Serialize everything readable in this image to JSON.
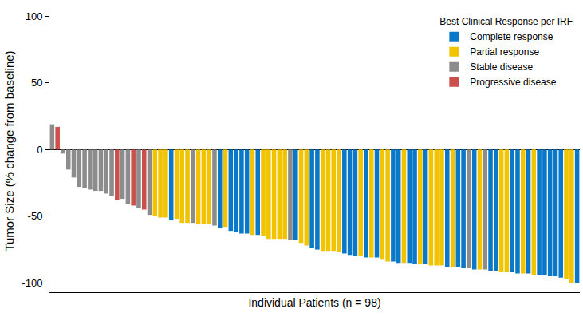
{
  "chart_data": {
    "type": "bar",
    "x_label": "Individual Patients (n = 98)",
    "y_label": "Tumor Size (% change from baseline)",
    "legend_title": "Best Clinical Response per IRF",
    "legend": "top right",
    "grid": false,
    "tick_labels": "y",
    "ylim": [
      -107,
      105
    ],
    "yticks": [
      -100,
      -50,
      0,
      50,
      100
    ],
    "categories": [
      null,
      null,
      null,
      null,
      null,
      null,
      null,
      null,
      null,
      null,
      null,
      null,
      null,
      null,
      null,
      null,
      null,
      null,
      null,
      null,
      null,
      null,
      null,
      null,
      null,
      null,
      null,
      null,
      null,
      null,
      null,
      null,
      null,
      null,
      null,
      null,
      null,
      null,
      null,
      null,
      null,
      null,
      null,
      null,
      null,
      null,
      null,
      null,
      null,
      null,
      null,
      null,
      null,
      null,
      null,
      null,
      null,
      null,
      null,
      null,
      null,
      null,
      null,
      null,
      null,
      null,
      null,
      null,
      null,
      null,
      null,
      null,
      null,
      null,
      null,
      null,
      null,
      null,
      null,
      null,
      null,
      null,
      null,
      null,
      null,
      null,
      null,
      null,
      null,
      null,
      null,
      null,
      null,
      null,
      null,
      null,
      null,
      null
    ],
    "series": [
      {
        "name": "Complete response",
        "color": "#0a78c8",
        "values": [
          null,
          null,
          null,
          null,
          null,
          null,
          null,
          null,
          null,
          null,
          null,
          null,
          null,
          null,
          null,
          null,
          null,
          null,
          null,
          null,
          null,
          null,
          -53,
          null,
          null,
          null,
          null,
          null,
          null,
          null,
          null,
          -59,
          null,
          -61,
          -62,
          -63,
          -63,
          null,
          -64,
          null,
          null,
          null,
          null,
          null,
          null,
          -68,
          null,
          null,
          -74,
          -75,
          null,
          null,
          null,
          null,
          -78,
          -79,
          -80,
          null,
          -81,
          null,
          -81,
          null,
          null,
          -84,
          -85,
          null,
          -85,
          -86,
          null,
          -86,
          null,
          null,
          null,
          -88,
          null,
          -88,
          -89,
          null,
          -90,
          null,
          null,
          -91,
          -91,
          null,
          null,
          -92,
          -93,
          null,
          -93,
          null,
          -94,
          -94,
          -95,
          -95,
          -96,
          null,
          null,
          -100
        ]
      },
      {
        "name": "Partial response",
        "color": "#f2c300",
        "values": [
          null,
          null,
          null,
          null,
          null,
          null,
          null,
          null,
          null,
          null,
          null,
          null,
          null,
          null,
          null,
          null,
          null,
          null,
          null,
          -50,
          -51,
          -51,
          null,
          -52,
          -55,
          -55,
          null,
          -56,
          -56,
          -56,
          null,
          null,
          -58,
          null,
          null,
          null,
          null,
          -64,
          null,
          -65,
          -67,
          -67,
          -67,
          -67,
          null,
          null,
          -70,
          -72,
          null,
          null,
          -76,
          -76,
          -76,
          -77,
          null,
          null,
          null,
          -80,
          null,
          -81,
          null,
          -82,
          -84,
          null,
          null,
          -85,
          null,
          null,
          -86,
          null,
          -87,
          -87,
          -87,
          null,
          -88,
          null,
          null,
          null,
          null,
          -90,
          null,
          null,
          null,
          -92,
          -92,
          null,
          null,
          -93,
          null,
          -94,
          null,
          null,
          null,
          null,
          null,
          -97,
          -100,
          null
        ]
      },
      {
        "name": "Stable disease",
        "color": "#8c8c8c",
        "values": [
          19,
          null,
          -3,
          -15,
          -21,
          -28,
          -29,
          -30,
          -31,
          -31,
          -33,
          -35,
          null,
          -37,
          -41,
          null,
          -44,
          null,
          -49,
          null,
          null,
          null,
          null,
          null,
          null,
          null,
          -55,
          null,
          null,
          null,
          -57,
          null,
          null,
          null,
          null,
          null,
          null,
          null,
          null,
          null,
          null,
          null,
          null,
          null,
          -68,
          null,
          null,
          null,
          null,
          null,
          null,
          null,
          null,
          null,
          null,
          null,
          null,
          null,
          null,
          null,
          null,
          null,
          null,
          null,
          null,
          null,
          null,
          null,
          null,
          null,
          null,
          null,
          null,
          null,
          null,
          null,
          null,
          -89,
          null,
          null,
          -90,
          null,
          null,
          null,
          null,
          null,
          null,
          null,
          null,
          null,
          null,
          null,
          null,
          null,
          null,
          null,
          null,
          null
        ]
      },
      {
        "name": "Progressive disease",
        "color": "#c9504b",
        "values": [
          null,
          17,
          null,
          null,
          null,
          null,
          null,
          null,
          null,
          null,
          null,
          null,
          -38,
          null,
          null,
          -42,
          null,
          -45,
          null,
          null,
          null,
          null,
          null,
          null,
          null,
          null,
          null,
          null,
          null,
          null,
          null,
          null,
          null,
          null,
          null,
          null,
          null,
          null,
          null,
          null,
          null,
          null,
          null,
          null,
          null,
          null,
          null,
          null,
          null,
          null,
          null,
          null,
          null,
          null,
          null,
          null,
          null,
          null,
          null,
          null,
          null,
          null,
          null,
          null,
          null,
          null,
          null,
          null,
          null,
          null,
          null,
          null,
          null,
          null,
          null,
          null,
          null,
          null,
          null,
          null,
          null,
          null,
          null,
          null,
          null,
          null,
          null,
          null,
          null,
          null,
          null,
          null,
          null,
          null,
          null,
          null,
          null,
          null
        ]
      }
    ]
  }
}
